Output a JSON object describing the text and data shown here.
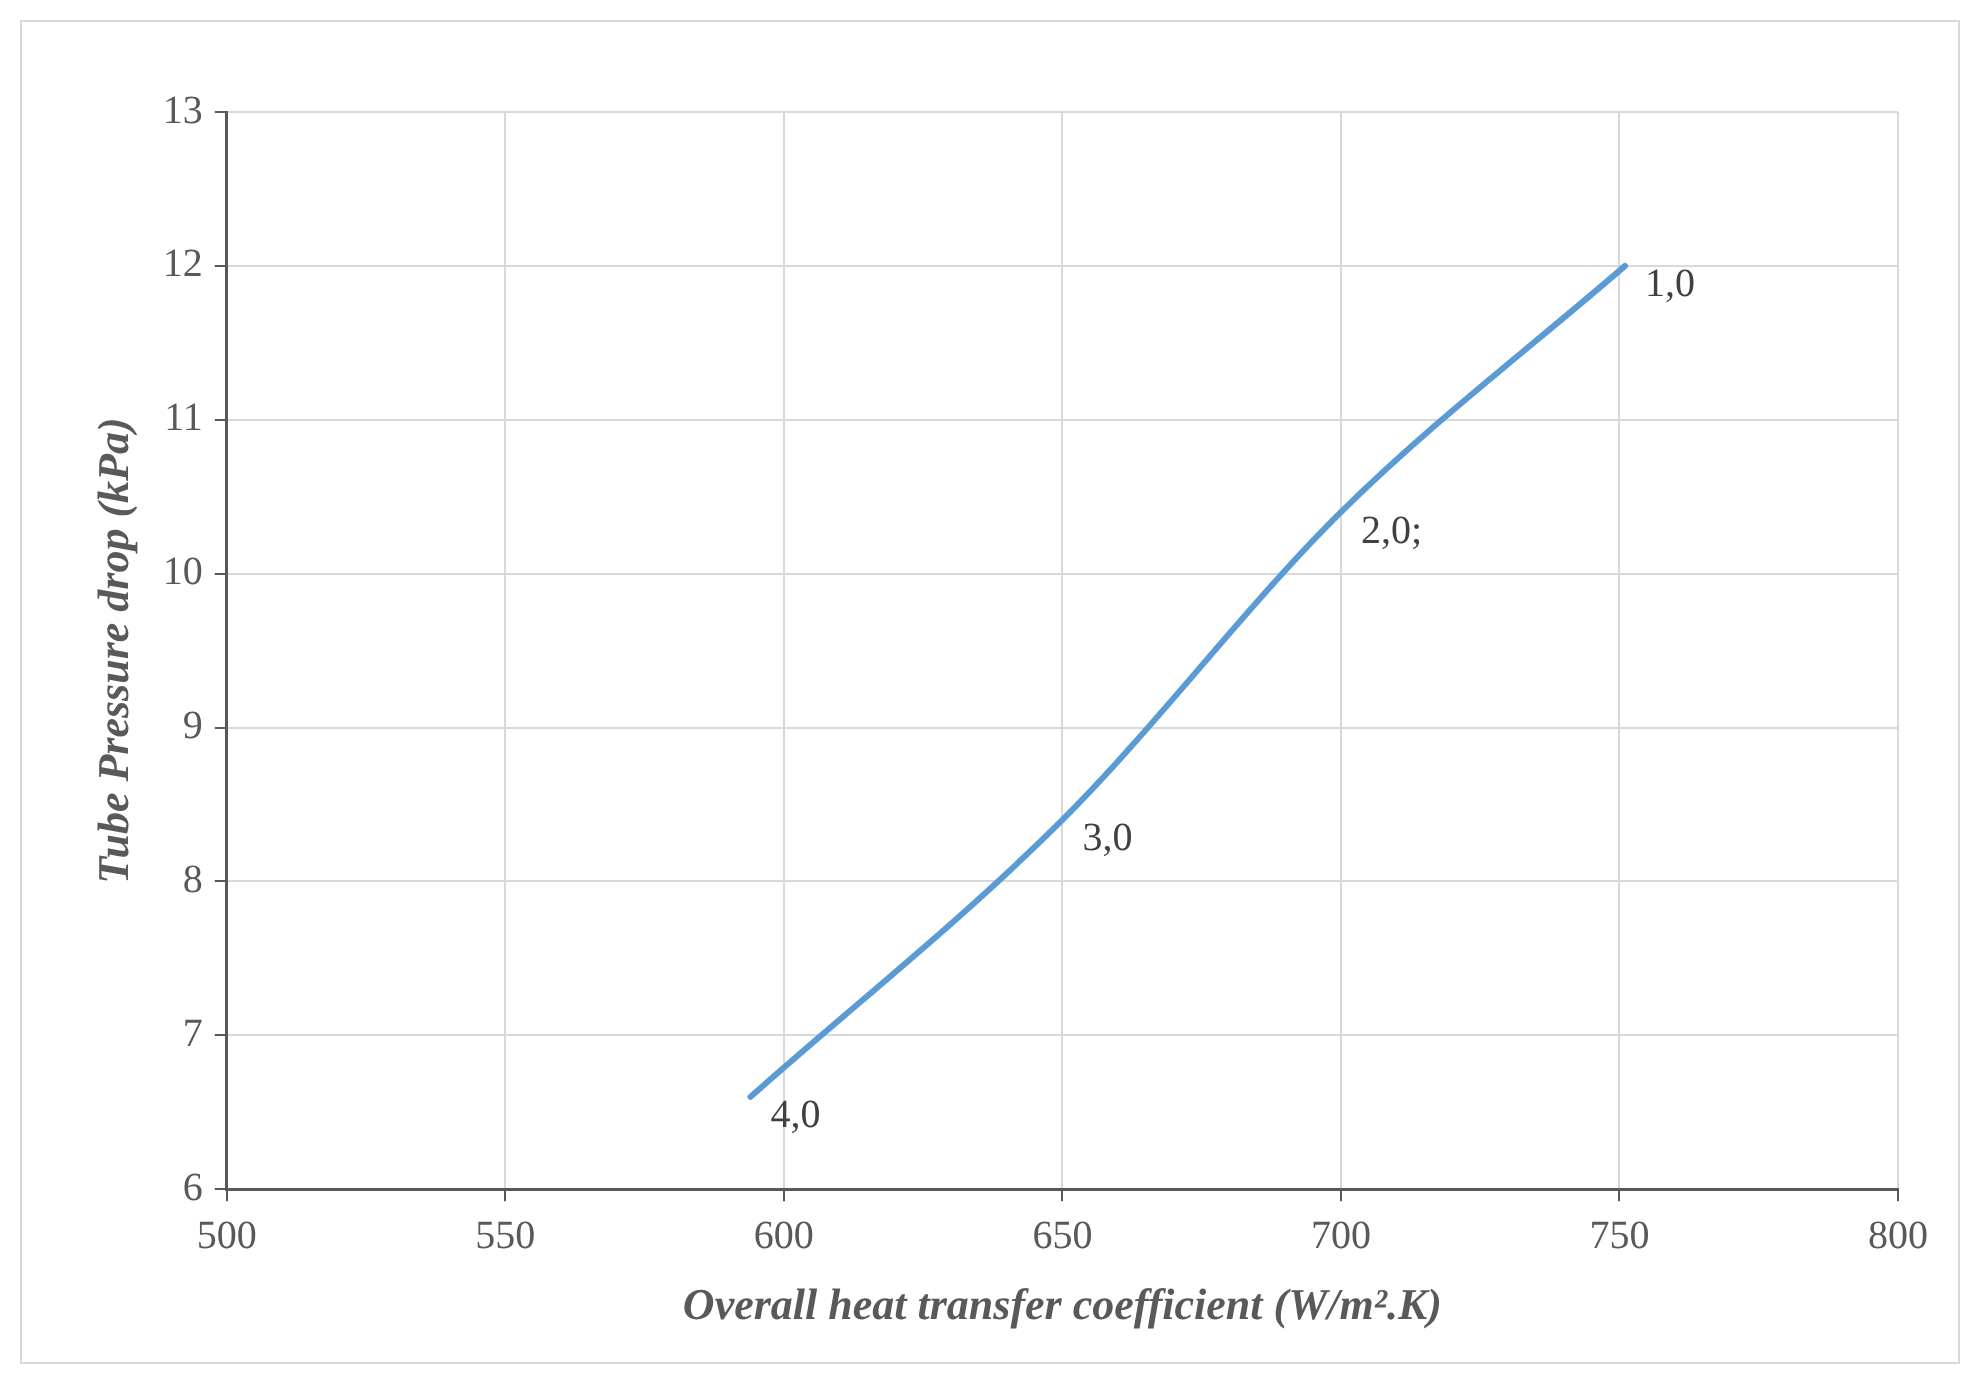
{
  "chart_data": {
    "type": "line",
    "xlabel": "Overall heat transfer coefficient (W/m².K)",
    "ylabel": "Tube Pressure drop (kPa)",
    "x": [
      594,
      650,
      700,
      751
    ],
    "series": [
      {
        "color": "#5b9bd5",
        "values": [
          6.6,
          8.4,
          10.4,
          12.0
        ]
      }
    ],
    "xlim": [
      500,
      800
    ],
    "xticks": [
      500,
      550,
      600,
      650,
      700,
      750,
      800
    ],
    "ylim": [
      6,
      13
    ],
    "yticks": [
      6,
      7,
      8,
      9,
      10,
      11,
      12,
      13
    ],
    "grid": true,
    "legend": false,
    "marker": "none",
    "line_style": "solid",
    "annotations": [
      {
        "text": "4,0",
        "x": 594,
        "y": 6.6
      },
      {
        "text": "3,0",
        "x": 650,
        "y": 8.4
      },
      {
        "text": "2,0;",
        "x": 700,
        "y": 10.4
      },
      {
        "text": "1,0",
        "x": 751,
        "y": 12.0
      }
    ]
  }
}
